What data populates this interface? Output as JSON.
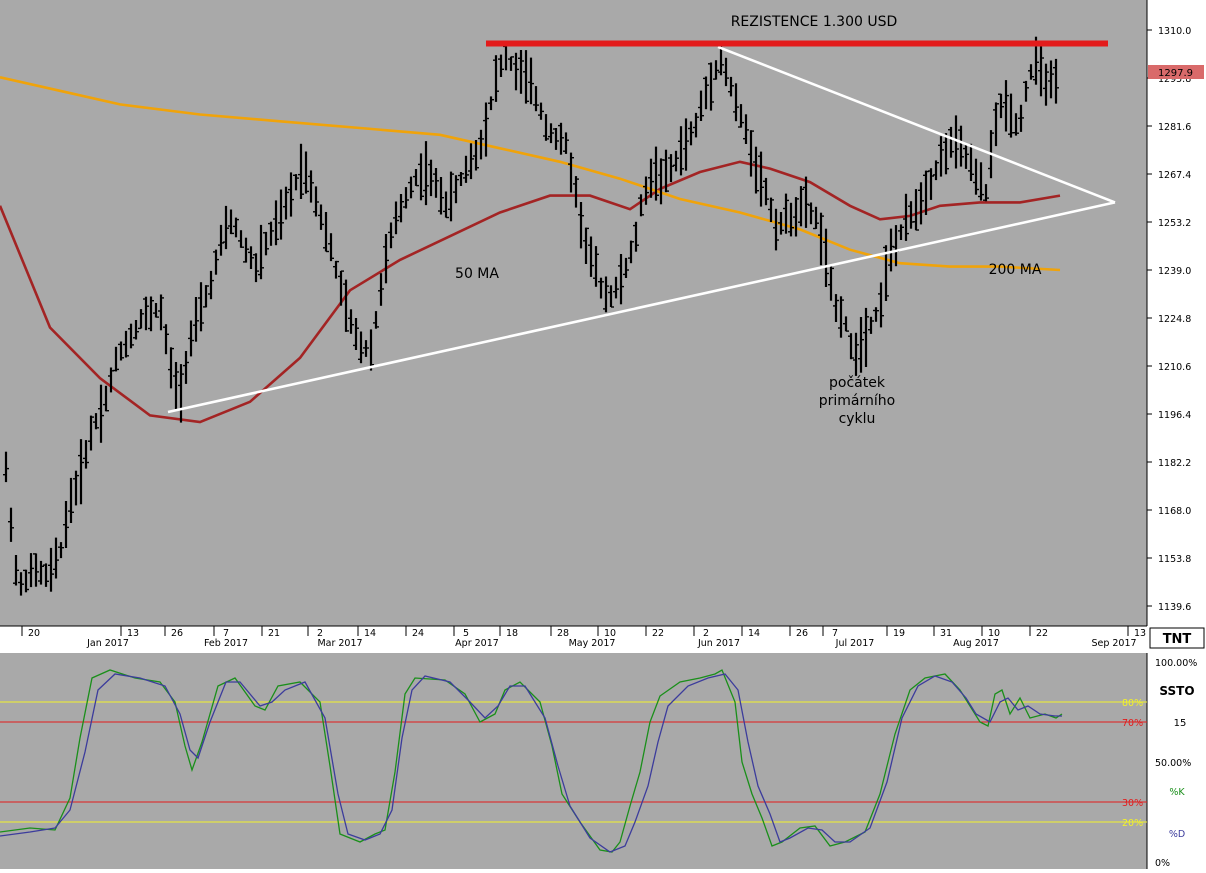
{
  "chart_data": [
    {
      "type": "ohlc",
      "title": "REZISTENCE 1.300 USD",
      "y_ticks": [
        "1310.0",
        "1295.8",
        "1281.6",
        "1267.4",
        "1253.2",
        "1239.0",
        "1224.8",
        "1210.6",
        "1196.4",
        "1182.2",
        "1168.0",
        "1153.8",
        "1139.6"
      ],
      "ylim": [
        1135,
        1315
      ],
      "last_price": "1297.9",
      "x_day_ticks": [
        "20",
        "13",
        "26",
        "7",
        "21",
        "2",
        "14",
        "24",
        "5",
        "18",
        "28",
        "10",
        "22",
        "2",
        "14",
        "26",
        "7",
        "19",
        "31",
        "10",
        "22",
        "13"
      ],
      "x_month_ticks": [
        "Jan 2017",
        "Feb 2017",
        "Mar 2017",
        "Apr 2017",
        "May 2017",
        "Jun 2017",
        "Jul 2017",
        "Aug 2017",
        "Sep 2017"
      ],
      "logo": "TNT",
      "annotations": {
        "ma50": "50 MA",
        "ma200": "200 MA",
        "cycle_line1": "počátek",
        "cycle_line2": "primárního",
        "cycle_line3": "cyklu"
      },
      "resistance_level": 1306,
      "colors": {
        "background": "#a9a9a9",
        "bars": "#000000",
        "resistance": "#e31b1b",
        "trendlines": "#ffffff",
        "ma50": "#a32424",
        "ma200": "#f0a30a",
        "last_price_box": "#d96a6a"
      },
      "series": [
        {
          "name": "50 MA",
          "points": [
            [
              0,
              1258
            ],
            [
              50,
              1222
            ],
            [
              100,
              1207
            ],
            [
              150,
              1196
            ],
            [
              200,
              1194
            ],
            [
              250,
              1200
            ],
            [
              300,
              1213
            ],
            [
              350,
              1233
            ],
            [
              400,
              1242
            ],
            [
              450,
              1249
            ],
            [
              500,
              1256
            ],
            [
              550,
              1261
            ],
            [
              590,
              1261
            ],
            [
              630,
              1257
            ],
            [
              660,
              1263
            ],
            [
              700,
              1268
            ],
            [
              740,
              1271
            ],
            [
              770,
              1269
            ],
            [
              810,
              1265
            ],
            [
              850,
              1258
            ],
            [
              880,
              1254
            ],
            [
              910,
              1255
            ],
            [
              940,
              1258
            ],
            [
              980,
              1259
            ],
            [
              1020,
              1259
            ],
            [
              1060,
              1261
            ]
          ]
        },
        {
          "name": "200 MA",
          "points": [
            [
              0,
              1296
            ],
            [
              60,
              1292
            ],
            [
              120,
              1288
            ],
            [
              200,
              1285
            ],
            [
              280,
              1283
            ],
            [
              360,
              1281
            ],
            [
              440,
              1279
            ],
            [
              500,
              1275
            ],
            [
              560,
              1271
            ],
            [
              620,
              1266
            ],
            [
              680,
              1260
            ],
            [
              740,
              1256
            ],
            [
              800,
              1251
            ],
            [
              850,
              1245
            ],
            [
              900,
              1241
            ],
            [
              950,
              1240
            ],
            [
              1000,
              1240
            ],
            [
              1060,
              1239
            ]
          ]
        }
      ],
      "trendlines": [
        {
          "from": [
            168,
            1197
          ],
          "to": [
            1115,
            1259
          ]
        },
        {
          "from": [
            718,
            1305
          ],
          "to": [
            1115,
            1259
          ]
        }
      ]
    },
    {
      "type": "line",
      "name": "SSTO",
      "label": "SSTO",
      "period": "15",
      "ylim": [
        0,
        100
      ],
      "levels": [
        {
          "value": 80,
          "label": "80%",
          "color": "#f2f22a"
        },
        {
          "value": 70,
          "label": "70%",
          "color": "#e31b1b"
        },
        {
          "value": 30,
          "label": "30%",
          "color": "#e31b1b"
        },
        {
          "value": 20,
          "label": "20%",
          "color": "#f2f22a"
        }
      ],
      "scale_labels": [
        "100.00%",
        "50.00%",
        "0%"
      ],
      "series": [
        {
          "name": "%K",
          "color": "#1a8f1a",
          "points": [
            [
              0,
              15
            ],
            [
              30,
              17
            ],
            [
              55,
              16
            ],
            [
              70,
              32
            ],
            [
              80,
              62
            ],
            [
              92,
              92
            ],
            [
              110,
              96
            ],
            [
              135,
              92
            ],
            [
              160,
              90
            ],
            [
              175,
              80
            ],
            [
              185,
              58
            ],
            [
              192,
              46
            ],
            [
              202,
              60
            ],
            [
              218,
              88
            ],
            [
              235,
              92
            ],
            [
              255,
              78
            ],
            [
              265,
              76
            ],
            [
              278,
              88
            ],
            [
              300,
              90
            ],
            [
              320,
              80
            ],
            [
              330,
              48
            ],
            [
              340,
              14
            ],
            [
              360,
              10
            ],
            [
              375,
              14
            ],
            [
              385,
              16
            ],
            [
              395,
              45
            ],
            [
              405,
              84
            ],
            [
              415,
              92
            ],
            [
              445,
              91
            ],
            [
              465,
              84
            ],
            [
              480,
              70
            ],
            [
              495,
              74
            ],
            [
              505,
              86
            ],
            [
              520,
              90
            ],
            [
              540,
              80
            ],
            [
              552,
              58
            ],
            [
              562,
              34
            ],
            [
              580,
              20
            ],
            [
              600,
              6
            ],
            [
              612,
              5
            ],
            [
              620,
              10
            ],
            [
              630,
              28
            ],
            [
              640,
              45
            ],
            [
              650,
              70
            ],
            [
              660,
              83
            ],
            [
              680,
              90
            ],
            [
              700,
              92
            ],
            [
              715,
              94
            ],
            [
              722,
              96
            ],
            [
              735,
              80
            ],
            [
              742,
              50
            ],
            [
              752,
              34
            ],
            [
              762,
              22
            ],
            [
              772,
              8
            ],
            [
              782,
              10
            ],
            [
              800,
              17
            ],
            [
              815,
              18
            ],
            [
              830,
              8
            ],
            [
              845,
              10
            ],
            [
              865,
              15
            ],
            [
              880,
              34
            ],
            [
              895,
              64
            ],
            [
              910,
              86
            ],
            [
              925,
              92
            ],
            [
              945,
              94
            ],
            [
              960,
              86
            ],
            [
              970,
              78
            ],
            [
              980,
              70
            ],
            [
              988,
              68
            ],
            [
              995,
              84
            ],
            [
              1002,
              86
            ],
            [
              1010,
              74
            ],
            [
              1020,
              82
            ],
            [
              1030,
              72
            ],
            [
              1045,
              74
            ],
            [
              1056,
              72
            ],
            [
              1062,
              74
            ]
          ]
        },
        {
          "name": "%D",
          "color": "#3c3c9c",
          "points": [
            [
              0,
              13
            ],
            [
              30,
              15
            ],
            [
              55,
              17
            ],
            [
              70,
              26
            ],
            [
              85,
              55
            ],
            [
              98,
              86
            ],
            [
              115,
              94
            ],
            [
              140,
              92
            ],
            [
              165,
              88
            ],
            [
              180,
              74
            ],
            [
              190,
              56
            ],
            [
              198,
              52
            ],
            [
              210,
              70
            ],
            [
              226,
              90
            ],
            [
              240,
              90
            ],
            [
              260,
              78
            ],
            [
              272,
              80
            ],
            [
              285,
              86
            ],
            [
              305,
              90
            ],
            [
              325,
              72
            ],
            [
              338,
              34
            ],
            [
              348,
              14
            ],
            [
              365,
              11
            ],
            [
              380,
              14
            ],
            [
              392,
              26
            ],
            [
              402,
              62
            ],
            [
              412,
              86
            ],
            [
              425,
              93
            ],
            [
              450,
              90
            ],
            [
              470,
              80
            ],
            [
              485,
              72
            ],
            [
              498,
              78
            ],
            [
              510,
              88
            ],
            [
              525,
              88
            ],
            [
              545,
              72
            ],
            [
              558,
              48
            ],
            [
              570,
              28
            ],
            [
              590,
              12
            ],
            [
              610,
              5
            ],
            [
              625,
              8
            ],
            [
              635,
              20
            ],
            [
              648,
              38
            ],
            [
              658,
              60
            ],
            [
              668,
              78
            ],
            [
              688,
              88
            ],
            [
              708,
              92
            ],
            [
              725,
              94
            ],
            [
              738,
              86
            ],
            [
              748,
              60
            ],
            [
              758,
              38
            ],
            [
              770,
              24
            ],
            [
              780,
              10
            ],
            [
              790,
              12
            ],
            [
              808,
              17
            ],
            [
              822,
              16
            ],
            [
              835,
              10
            ],
            [
              850,
              10
            ],
            [
              870,
              17
            ],
            [
              887,
              40
            ],
            [
              902,
              72
            ],
            [
              918,
              88
            ],
            [
              935,
              93
            ],
            [
              952,
              90
            ],
            [
              966,
              82
            ],
            [
              976,
              74
            ],
            [
              990,
              70
            ],
            [
              1000,
              80
            ],
            [
              1008,
              82
            ],
            [
              1018,
              76
            ],
            [
              1028,
              78
            ],
            [
              1040,
              74
            ],
            [
              1055,
              73
            ],
            [
              1062,
              73
            ]
          ]
        }
      ]
    }
  ]
}
